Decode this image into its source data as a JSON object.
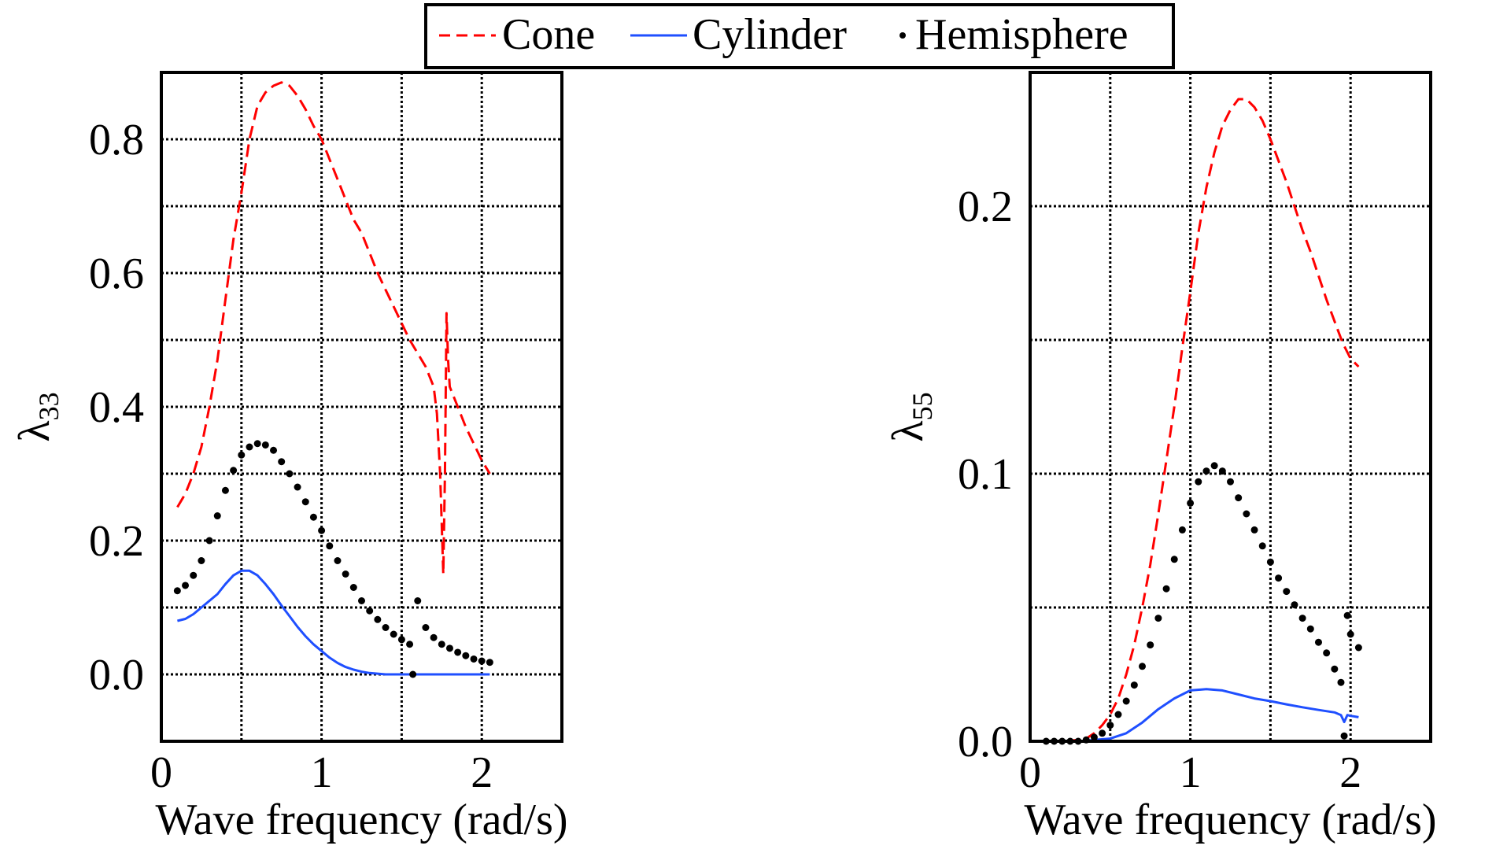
{
  "legend": {
    "items": [
      {
        "label": "Cone",
        "style": "dashed",
        "color": "#ff0000"
      },
      {
        "label": "Cylinder",
        "style": "solid",
        "color": "#1f4fff"
      },
      {
        "label": "Hemisphere",
        "style": "dots",
        "color": "#000000"
      }
    ]
  },
  "chart_data": [
    {
      "type": "line",
      "title": "",
      "xlabel": "Wave frequency (rad/s)",
      "ylabel": "λ",
      "ylabel_sub": "33",
      "xlim": [
        0,
        2.5
      ],
      "ylim": [
        -0.1,
        0.9
      ],
      "xticks": [
        0,
        1,
        2
      ],
      "xtick_labels": [
        "0",
        "1",
        "2"
      ],
      "yticks": [
        0.0,
        0.2,
        0.4,
        0.6,
        0.8
      ],
      "ytick_labels": [
        "0.0",
        "0.2",
        "0.4",
        "0.6",
        "0.8"
      ],
      "grid": true,
      "grid_x": [
        0.5,
        1.0,
        1.5,
        2.0
      ],
      "grid_y": [
        0.0,
        0.1,
        0.2,
        0.3,
        0.4,
        0.5,
        0.6,
        0.7,
        0.8
      ],
      "series": [
        {
          "name": "Cone",
          "style": "dashed",
          "color": "#ff0000",
          "x": [
            0.1,
            0.15,
            0.2,
            0.25,
            0.3,
            0.35,
            0.4,
            0.45,
            0.5,
            0.55,
            0.6,
            0.65,
            0.7,
            0.75,
            0.8,
            0.85,
            0.9,
            0.95,
            1.0,
            1.05,
            1.1,
            1.15,
            1.2,
            1.25,
            1.3,
            1.35,
            1.4,
            1.45,
            1.5,
            1.55,
            1.6,
            1.65,
            1.7,
            1.72,
            1.74,
            1.76,
            1.77,
            1.78,
            1.79,
            1.8,
            1.85,
            1.9,
            1.95,
            2.0,
            2.05
          ],
          "y": [
            0.25,
            0.27,
            0.3,
            0.34,
            0.4,
            0.47,
            0.56,
            0.65,
            0.72,
            0.8,
            0.85,
            0.87,
            0.88,
            0.885,
            0.88,
            0.865,
            0.845,
            0.82,
            0.8,
            0.77,
            0.74,
            0.71,
            0.68,
            0.66,
            0.63,
            0.6,
            0.575,
            0.55,
            0.525,
            0.5,
            0.48,
            0.46,
            0.43,
            0.39,
            0.3,
            0.15,
            0.3,
            0.54,
            0.47,
            0.43,
            0.4,
            0.37,
            0.345,
            0.32,
            0.3
          ]
        },
        {
          "name": "Cylinder",
          "style": "solid",
          "color": "#1f4fff",
          "x": [
            0.1,
            0.15,
            0.2,
            0.25,
            0.3,
            0.35,
            0.4,
            0.45,
            0.5,
            0.55,
            0.6,
            0.65,
            0.7,
            0.75,
            0.8,
            0.85,
            0.9,
            0.95,
            1.0,
            1.05,
            1.1,
            1.15,
            1.2,
            1.25,
            1.3,
            1.35,
            1.4,
            1.5,
            1.6,
            1.7,
            1.8,
            1.9,
            2.0,
            2.05
          ],
          "y": [
            0.08,
            0.083,
            0.09,
            0.1,
            0.11,
            0.12,
            0.135,
            0.148,
            0.155,
            0.155,
            0.148,
            0.135,
            0.12,
            0.103,
            0.087,
            0.071,
            0.057,
            0.045,
            0.035,
            0.025,
            0.017,
            0.011,
            0.007,
            0.004,
            0.002,
            0.001,
            0.0,
            0.0,
            0.0,
            0.0,
            0.0,
            0.0,
            0.0,
            0.0
          ]
        },
        {
          "name": "Hemisphere",
          "style": "dots",
          "color": "#000000",
          "x": [
            0.1,
            0.15,
            0.2,
            0.25,
            0.3,
            0.35,
            0.4,
            0.45,
            0.5,
            0.55,
            0.6,
            0.65,
            0.7,
            0.75,
            0.8,
            0.85,
            0.9,
            0.95,
            1.0,
            1.05,
            1.1,
            1.15,
            1.2,
            1.25,
            1.3,
            1.35,
            1.4,
            1.45,
            1.5,
            1.55,
            1.57,
            1.6,
            1.65,
            1.7,
            1.75,
            1.8,
            1.85,
            1.9,
            1.95,
            2.0,
            2.05
          ],
          "y": [
            0.125,
            0.133,
            0.148,
            0.17,
            0.2,
            0.237,
            0.275,
            0.305,
            0.328,
            0.34,
            0.345,
            0.343,
            0.335,
            0.318,
            0.3,
            0.28,
            0.258,
            0.235,
            0.215,
            0.192,
            0.17,
            0.15,
            0.13,
            0.11,
            0.095,
            0.082,
            0.07,
            0.06,
            0.052,
            0.045,
            0.0,
            0.11,
            0.07,
            0.055,
            0.045,
            0.039,
            0.033,
            0.028,
            0.023,
            0.02,
            0.018
          ]
        }
      ]
    },
    {
      "type": "line",
      "title": "",
      "xlabel": "Wave frequency (rad/s)",
      "ylabel": "λ",
      "ylabel_sub": "55",
      "xlim": [
        0,
        2.5
      ],
      "ylim": [
        0,
        0.25
      ],
      "xticks": [
        0,
        1,
        2
      ],
      "xtick_labels": [
        "0",
        "1",
        "2"
      ],
      "yticks": [
        0.0,
        0.1,
        0.2
      ],
      "ytick_labels": [
        "0.0",
        "0.1",
        "0.2"
      ],
      "grid": true,
      "grid_x": [
        0.5,
        1.0,
        1.5,
        2.0
      ],
      "grid_y": [
        0.05,
        0.1,
        0.15,
        0.2
      ],
      "series": [
        {
          "name": "Cone",
          "style": "dashed",
          "color": "#ff0000",
          "x": [
            0.1,
            0.2,
            0.3,
            0.35,
            0.4,
            0.45,
            0.5,
            0.55,
            0.6,
            0.65,
            0.7,
            0.75,
            0.8,
            0.85,
            0.9,
            0.95,
            1.0,
            1.05,
            1.1,
            1.15,
            1.2,
            1.25,
            1.3,
            1.35,
            1.4,
            1.45,
            1.5,
            1.55,
            1.6,
            1.65,
            1.7,
            1.75,
            1.8,
            1.85,
            1.9,
            1.95,
            2.0,
            2.05
          ],
          "y": [
            0.0,
            0.0,
            0.0005,
            0.001,
            0.003,
            0.006,
            0.01,
            0.016,
            0.025,
            0.036,
            0.05,
            0.066,
            0.085,
            0.105,
            0.125,
            0.147,
            0.168,
            0.19,
            0.207,
            0.22,
            0.23,
            0.236,
            0.24,
            0.24,
            0.237,
            0.232,
            0.225,
            0.217,
            0.209,
            0.2,
            0.191,
            0.183,
            0.174,
            0.165,
            0.157,
            0.149,
            0.143,
            0.14
          ]
        },
        {
          "name": "Cylinder",
          "style": "solid",
          "color": "#1f4fff",
          "x": [
            0.1,
            0.3,
            0.5,
            0.6,
            0.7,
            0.8,
            0.9,
            1.0,
            1.1,
            1.2,
            1.3,
            1.4,
            1.5,
            1.6,
            1.7,
            1.8,
            1.9,
            1.94,
            1.96,
            1.98,
            2.0,
            2.05
          ],
          "y": [
            0.0,
            0.0,
            0.001,
            0.003,
            0.007,
            0.012,
            0.016,
            0.019,
            0.0195,
            0.019,
            0.0175,
            0.016,
            0.015,
            0.0138,
            0.0127,
            0.0117,
            0.0108,
            0.0098,
            0.0072,
            0.0098,
            0.0095,
            0.009
          ]
        },
        {
          "name": "Hemisphere",
          "style": "dots",
          "color": "#000000",
          "x": [
            0.1,
            0.15,
            0.2,
            0.25,
            0.3,
            0.35,
            0.4,
            0.45,
            0.5,
            0.55,
            0.6,
            0.65,
            0.7,
            0.75,
            0.8,
            0.85,
            0.9,
            0.95,
            1.0,
            1.05,
            1.1,
            1.15,
            1.2,
            1.25,
            1.3,
            1.35,
            1.4,
            1.45,
            1.5,
            1.55,
            1.6,
            1.65,
            1.7,
            1.75,
            1.8,
            1.85,
            1.9,
            1.94,
            1.96,
            1.98,
            2.0,
            2.05
          ],
          "y": [
            0.0,
            0.0,
            0.0,
            0.0,
            0.0,
            0.0005,
            0.0015,
            0.003,
            0.006,
            0.01,
            0.015,
            0.021,
            0.028,
            0.036,
            0.046,
            0.057,
            0.068,
            0.079,
            0.089,
            0.097,
            0.101,
            0.103,
            0.101,
            0.097,
            0.091,
            0.085,
            0.079,
            0.073,
            0.067,
            0.061,
            0.056,
            0.051,
            0.046,
            0.042,
            0.037,
            0.033,
            0.027,
            0.022,
            0.002,
            0.047,
            0.04,
            0.035
          ]
        }
      ]
    }
  ]
}
